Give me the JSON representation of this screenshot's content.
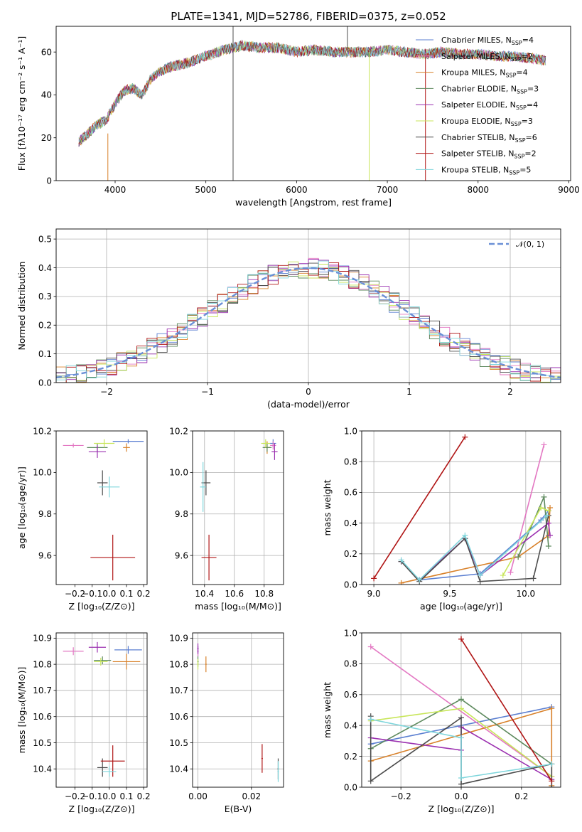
{
  "figure": {
    "title": "PLATE=1341, MJD=52786, FIBERID=0375, z=0.052"
  },
  "colors": {
    "Chabrier MILES": "#5b7fd1",
    "Salpeter MILES": "#e377c2",
    "Kroupa MILES": "#d8812a",
    "Chabrier ELODIE": "#5e8a5e",
    "Salpeter ELODIE": "#9b30b0",
    "Kroupa ELODIE": "#c8e65a",
    "Chabrier STELIB": "#4d4d4d",
    "Salpeter STELIB": "#b01515",
    "Kroupa STELIB": "#7fd6dc"
  },
  "chart_data": [
    {
      "id": "spectrum",
      "type": "line",
      "xlabel": "wavelength [Angstrom, rest frame]",
      "ylabel": "Flux [fλ10⁻¹⁷ erg cm⁻² s⁻¹ A⁻¹]",
      "xlim": [
        3350,
        9020
      ],
      "ylim": [
        0,
        72
      ],
      "xticks": [
        4000,
        5000,
        6000,
        7000,
        8000,
        9000
      ],
      "yticks": [
        0,
        20,
        40,
        60
      ],
      "grid": false,
      "legend_placement": "upper-right",
      "series": [
        {
          "name": "Chabrier MILES, N_SSP=4",
          "legend_prefix": "Chabrier MILES, N",
          "legend_sub": "SSP",
          "legend_suffix": "=4"
        },
        {
          "name": "Salpeter MILES, N_SSP=2",
          "legend_prefix": "Salpeter MILES, N",
          "legend_sub": "SSP",
          "legend_suffix": "=2"
        },
        {
          "name": "Kroupa MILES, N_SSP=4",
          "legend_prefix": "Kroupa MILES, N",
          "legend_sub": "SSP",
          "legend_suffix": "=4"
        },
        {
          "name": "Chabrier ELODIE, N_SSP=3",
          "legend_prefix": "Chabrier ELODIE, N",
          "legend_sub": "SSP",
          "legend_suffix": "=3"
        },
        {
          "name": "Salpeter ELODIE, N_SSP=4",
          "legend_prefix": "Salpeter ELODIE, N",
          "legend_sub": "SSP",
          "legend_suffix": "=4"
        },
        {
          "name": "Kroupa ELODIE, N_SSP=3",
          "legend_prefix": "Kroupa ELODIE, N",
          "legend_sub": "SSP",
          "legend_suffix": "=3"
        },
        {
          "name": "Chabrier STELIB, N_SSP=6",
          "legend_prefix": "Chabrier STELIB, N",
          "legend_sub": "SSP",
          "legend_suffix": "=6"
        },
        {
          "name": "Salpeter STELIB, N_SSP=2",
          "legend_prefix": "Salpeter STELIB, N",
          "legend_sub": "SSP",
          "legend_suffix": "=2"
        },
        {
          "name": "Kroupa STELIB, N_SSP=5",
          "legend_prefix": "Kroupa STELIB, N",
          "legend_sub": "SSP",
          "legend_suffix": "=5"
        }
      ],
      "continuum_points": [
        [
          3600,
          18
        ],
        [
          3800,
          26
        ],
        [
          3900,
          28
        ],
        [
          4000,
          36
        ],
        [
          4100,
          42
        ],
        [
          4200,
          43
        ],
        [
          4300,
          40
        ],
        [
          4400,
          48
        ],
        [
          4500,
          51
        ],
        [
          4600,
          53
        ],
        [
          4800,
          55
        ],
        [
          5000,
          58
        ],
        [
          5200,
          61
        ],
        [
          5400,
          63
        ],
        [
          5600,
          62
        ],
        [
          5800,
          62
        ],
        [
          6000,
          60
        ],
        [
          6200,
          61
        ],
        [
          6400,
          60
        ],
        [
          6600,
          60
        ],
        [
          6800,
          60
        ],
        [
          7000,
          61
        ],
        [
          7200,
          60
        ],
        [
          7400,
          59
        ],
        [
          7600,
          60
        ],
        [
          7800,
          59
        ],
        [
          8000,
          59
        ],
        [
          8200,
          58
        ],
        [
          8400,
          58
        ],
        [
          8600,
          57
        ],
        [
          8750,
          56
        ]
      ],
      "noise_amplitude": 2.5,
      "features": [
        {
          "series": "Chabrier STELIB",
          "x": 5300,
          "y_from": 0,
          "y_to": 72
        },
        {
          "series": "Chabrier STELIB",
          "x": 6560,
          "y_from": 60,
          "y_to": 72
        },
        {
          "series": "Kroupa ELODIE",
          "x": 6800,
          "y_from": 0,
          "y_to": 60
        },
        {
          "series": "Salpeter STELIB",
          "x": 7420,
          "y_from": 0,
          "y_to": 59
        },
        {
          "series": "Kroupa MILES",
          "x": 3920,
          "y_from": 0,
          "y_to": 22
        }
      ]
    },
    {
      "id": "residuals",
      "type": "bar",
      "xlabel": "(data-model)/error",
      "ylabel": "Normed distribution",
      "xlim": [
        -2.5,
        2.5
      ],
      "ylim": [
        0,
        0.535
      ],
      "xticks": [
        -2,
        -1,
        0,
        1,
        2
      ],
      "yticks": [
        0.0,
        0.1,
        0.2,
        0.3,
        0.4,
        0.5
      ],
      "grid": true,
      "legend_placement": "upper-right",
      "legend_entries": [
        "𝒩(0, 1)"
      ],
      "bin_edges": [
        -2.5,
        -2.4,
        -2.3,
        -2.2,
        -2.1,
        -2.0,
        -1.9,
        -1.8,
        -1.7,
        -1.6,
        -1.5,
        -1.4,
        -1.3,
        -1.2,
        -1.1,
        -1.0,
        -0.9,
        -0.8,
        -0.7,
        -0.6,
        -0.5,
        -0.4,
        -0.3,
        -0.2,
        -0.1,
        0.0,
        0.1,
        0.2,
        0.3,
        0.4,
        0.5,
        0.6,
        0.7,
        0.8,
        0.9,
        1.0,
        1.1,
        1.2,
        1.3,
        1.4,
        1.5,
        1.6,
        1.7,
        1.8,
        1.9,
        2.0,
        2.1,
        2.2,
        2.3,
        2.4,
        2.5
      ],
      "normal": {
        "mean": 0,
        "std": 1
      }
    },
    {
      "id": "age-vs-Z",
      "type": "scatter",
      "xlabel": "Z [log₁₀(Z/Z⊙)]",
      "ylabel": "age  [log₁₀(age/yr)]",
      "xlim": [
        -0.31,
        0.22
      ],
      "ylim": [
        9.46,
        10.2
      ],
      "xticks": [
        -0.2,
        -0.1,
        0.0,
        0.1,
        0.2
      ],
      "yticks": [
        9.6,
        9.8,
        10.0,
        10.2
      ],
      "grid": false,
      "points": [
        {
          "series": "Chabrier MILES",
          "x": 0.11,
          "y": 10.15,
          "xerr": 0.09,
          "yerr": 0.01
        },
        {
          "series": "Salpeter MILES",
          "x": -0.21,
          "y": 10.13,
          "xerr": 0.06,
          "yerr": 0.01
        },
        {
          "series": "Kroupa MILES",
          "x": 0.1,
          "y": 10.12,
          "xerr": 0.02,
          "yerr": 0.02
        },
        {
          "series": "Chabrier ELODIE",
          "x": -0.07,
          "y": 10.12,
          "xerr": 0.06,
          "yerr": 0.02
        },
        {
          "series": "Salpeter ELODIE",
          "x": -0.07,
          "y": 10.1,
          "xerr": 0.05,
          "yerr": 0.03
        },
        {
          "series": "Kroupa ELODIE",
          "x": -0.03,
          "y": 10.14,
          "xerr": 0.06,
          "yerr": 0.02
        },
        {
          "series": "Chabrier STELIB",
          "x": -0.04,
          "y": 9.95,
          "xerr": 0.03,
          "yerr": 0.06
        },
        {
          "series": "Salpeter STELIB",
          "x": 0.02,
          "y": 9.59,
          "xerr": 0.13,
          "yerr": 0.11
        },
        {
          "series": "Kroupa STELIB",
          "x": 0.0,
          "y": 9.93,
          "xerr": 0.06,
          "yerr": 0.05
        }
      ]
    },
    {
      "id": "age-vs-mass",
      "type": "scatter",
      "xlabel": "mass [log₁₀(M/M⊙)]",
      "ylabel": "",
      "xlim": [
        10.32,
        10.93
      ],
      "ylim": [
        9.46,
        10.2
      ],
      "xticks": [
        10.4,
        10.6,
        10.8
      ],
      "yticks": [
        9.6,
        9.8,
        10.0,
        10.2
      ],
      "grid": true,
      "points": [
        {
          "series": "Chabrier MILES",
          "x": 10.86,
          "y": 10.14,
          "xerr": 0.02,
          "yerr": 0.02
        },
        {
          "series": "Salpeter MILES",
          "x": 10.86,
          "y": 10.13,
          "xerr": 0.02,
          "yerr": 0.02
        },
        {
          "series": "Kroupa MILES",
          "x": 10.82,
          "y": 10.12,
          "xerr": 0.02,
          "yerr": 0.03
        },
        {
          "series": "Chabrier ELODIE",
          "x": 10.82,
          "y": 10.12,
          "xerr": 0.03,
          "yerr": 0.02
        },
        {
          "series": "Salpeter ELODIE",
          "x": 10.87,
          "y": 10.1,
          "xerr": 0.02,
          "yerr": 0.04
        },
        {
          "series": "Kroupa ELODIE",
          "x": 10.81,
          "y": 10.14,
          "xerr": 0.03,
          "yerr": 0.02
        },
        {
          "series": "Chabrier STELIB",
          "x": 10.41,
          "y": 9.95,
          "xerr": 0.03,
          "yerr": 0.06
        },
        {
          "series": "Salpeter STELIB",
          "x": 10.43,
          "y": 9.59,
          "xerr": 0.05,
          "yerr": 0.11
        },
        {
          "series": "Kroupa STELIB",
          "x": 10.39,
          "y": 9.93,
          "xerr": 0.02,
          "yerr": 0.12
        }
      ]
    },
    {
      "id": "weight-vs-age",
      "type": "line",
      "xlabel": "age  [log₁₀(age/yr)]",
      "ylabel": "mass weight",
      "xlim": [
        8.92,
        10.23
      ],
      "ylim": [
        0,
        1.0
      ],
      "xticks": [
        9.0,
        9.5,
        10.0
      ],
      "yticks": [
        0.0,
        0.2,
        0.4,
        0.6,
        0.8,
        1.0
      ],
      "grid": true,
      "series": [
        {
          "name": "Chabrier MILES",
          "x": [
            9.3,
            9.7,
            10.1,
            10.15
          ],
          "y": [
            0.03,
            0.07,
            0.42,
            0.48
          ]
        },
        {
          "name": "Salpeter MILES",
          "x": [
            9.9,
            10.12
          ],
          "y": [
            0.08,
            0.91
          ]
        },
        {
          "name": "Kroupa MILES",
          "x": [
            9.18,
            9.95,
            10.15,
            10.16
          ],
          "y": [
            0.01,
            0.18,
            0.32,
            0.5
          ]
        },
        {
          "name": "Chabrier ELODIE",
          "x": [
            9.95,
            10.12,
            10.15
          ],
          "y": [
            0.18,
            0.57,
            0.25
          ]
        },
        {
          "name": "Salpeter ELODIE",
          "x": [
            9.18,
            9.3,
            9.6,
            9.7,
            10.15,
            10.16
          ],
          "y": [
            0.15,
            0.03,
            0.3,
            0.06,
            0.4,
            0.32
          ]
        },
        {
          "name": "Kroupa ELODIE",
          "x": [
            9.85,
            10.1,
            10.15
          ],
          "y": [
            0.06,
            0.5,
            0.48
          ]
        },
        {
          "name": "Chabrier STELIB",
          "x": [
            9.18,
            9.3,
            9.6,
            9.7,
            10.05,
            10.15
          ],
          "y": [
            0.15,
            0.02,
            0.3,
            0.02,
            0.04,
            0.45
          ]
        },
        {
          "name": "Salpeter STELIB",
          "x": [
            9.0,
            9.6
          ],
          "y": [
            0.04,
            0.96
          ]
        },
        {
          "name": "Kroupa STELIB",
          "x": [
            9.18,
            9.3,
            9.6,
            9.7,
            10.14
          ],
          "y": [
            0.16,
            0.03,
            0.32,
            0.06,
            0.45
          ]
        }
      ]
    },
    {
      "id": "mass-vs-Z",
      "type": "scatter",
      "xlabel": "Z [log₁₀(Z/Z⊙)]",
      "ylabel": "mass [log₁₀(M/M⊙)]",
      "xlim": [
        -0.31,
        0.22
      ],
      "ylim": [
        10.33,
        10.92
      ],
      "xticks": [
        -0.2,
        -0.1,
        0.0,
        0.1,
        0.2
      ],
      "yticks": [
        10.4,
        10.5,
        10.6,
        10.7,
        10.8,
        10.9
      ],
      "grid": true,
      "points": [
        {
          "series": "Chabrier MILES",
          "x": 0.11,
          "y": 10.855,
          "xerr": 0.08,
          "yerr": 0.015
        },
        {
          "series": "Salpeter MILES",
          "x": -0.21,
          "y": 10.85,
          "xerr": 0.06,
          "yerr": 0.015
        },
        {
          "series": "Kroupa MILES",
          "x": 0.1,
          "y": 10.81,
          "xerr": 0.08,
          "yerr": 0.03
        },
        {
          "series": "Chabrier ELODIE",
          "x": -0.04,
          "y": 10.815,
          "xerr": 0.05,
          "yerr": 0.015
        },
        {
          "series": "Salpeter ELODIE",
          "x": -0.07,
          "y": 10.865,
          "xerr": 0.05,
          "yerr": 0.02
        },
        {
          "series": "Kroupa ELODIE",
          "x": -0.05,
          "y": 10.81,
          "xerr": 0.04,
          "yerr": 0.015
        },
        {
          "series": "Chabrier STELIB",
          "x": -0.04,
          "y": 10.405,
          "xerr": 0.03,
          "yerr": 0.035
        },
        {
          "series": "Salpeter STELIB",
          "x": 0.02,
          "y": 10.43,
          "xerr": 0.07,
          "yerr": 0.06
        },
        {
          "series": "Kroupa STELIB",
          "x": 0.0,
          "y": 10.39,
          "xerr": 0.04,
          "yerr": 0.02
        }
      ]
    },
    {
      "id": "mass-vs-EBV",
      "type": "scatter",
      "xlabel": "E(B-V)",
      "ylabel": "",
      "xlim": [
        -0.002,
        0.032
      ],
      "ylim": [
        10.33,
        10.92
      ],
      "xticks": [
        0.0,
        0.02
      ],
      "xticklabels": [
        "0.00",
        "0.02"
      ],
      "yticks": [
        10.4,
        10.5,
        10.6,
        10.7,
        10.8,
        10.9
      ],
      "grid": true,
      "points": [
        {
          "series": "Chabrier MILES",
          "x": 0.0,
          "y": 10.85,
          "xerr": 0,
          "yerr": 0.02
        },
        {
          "series": "Salpeter MILES",
          "x": 0.0,
          "y": 10.85,
          "xerr": 0,
          "yerr": 0.02
        },
        {
          "series": "Kroupa MILES",
          "x": 0.003,
          "y": 10.8,
          "xerr": 0,
          "yerr": 0.03
        },
        {
          "series": "Chabrier ELODIE",
          "x": 0.0,
          "y": 10.81,
          "xerr": 0,
          "yerr": 0.02
        },
        {
          "series": "Salpeter ELODIE",
          "x": 0.0,
          "y": 10.86,
          "xerr": 0,
          "yerr": 0.02
        },
        {
          "series": "Kroupa ELODIE",
          "x": 0.0,
          "y": 10.8,
          "xerr": 0,
          "yerr": 0.02
        },
        {
          "series": "Chabrier STELIB",
          "x": 0.03,
          "y": 10.4,
          "xerr": 0,
          "yerr": 0.04
        },
        {
          "series": "Salpeter STELIB",
          "x": 0.024,
          "y": 10.44,
          "xerr": 0,
          "yerr": 0.055
        },
        {
          "series": "Kroupa STELIB",
          "x": 0.03,
          "y": 10.39,
          "xerr": 0,
          "yerr": 0.04
        }
      ]
    },
    {
      "id": "weight-vs-Z",
      "type": "line",
      "xlabel": "Z [log₁₀(Z/Z⊙)]",
      "ylabel": "mass weight",
      "xlim": [
        -0.33,
        0.33
      ],
      "ylim": [
        0,
        1.0
      ],
      "xticks": [
        -0.2,
        0.0,
        0.2
      ],
      "yticks": [
        0.0,
        0.2,
        0.4,
        0.6,
        0.8,
        1.0
      ],
      "grid": true,
      "series": [
        {
          "name": "Chabrier MILES",
          "x": [
            -0.3,
            0.3
          ],
          "y": [
            0.28,
            0.52
          ]
        },
        {
          "name": "Salpeter MILES",
          "x": [
            -0.3,
            0.3
          ],
          "y": [
            0.91,
            0.07
          ]
        },
        {
          "name": "Kroupa MILES",
          "x": [
            -0.3,
            0.3,
            0.3
          ],
          "y": [
            0.17,
            0.51,
            0.01
          ]
        },
        {
          "name": "Chabrier ELODIE",
          "x": [
            -0.3,
            0.0,
            0.3
          ],
          "y": [
            0.25,
            0.57,
            0.15
          ]
        },
        {
          "name": "Salpeter ELODIE",
          "x": [
            -0.3,
            0.0,
            0.0,
            0.3
          ],
          "y": [
            0.32,
            0.24,
            0.39,
            0.05
          ]
        },
        {
          "name": "Kroupa ELODIE",
          "x": [
            -0.3,
            0.0,
            0.3
          ],
          "y": [
            0.43,
            0.51,
            0.07
          ]
        },
        {
          "name": "Chabrier STELIB",
          "x": [
            -0.3,
            -0.3,
            0.0,
            0.0,
            0.3,
            0.3
          ],
          "y": [
            0.46,
            0.04,
            0.45,
            0.02,
            0.15,
            0.0
          ]
        },
        {
          "name": "Salpeter STELIB",
          "x": [
            0.0,
            0.0,
            0.3
          ],
          "y": [
            0.96,
            0.96,
            0.04
          ]
        },
        {
          "name": "Kroupa STELIB",
          "x": [
            -0.3,
            0.0,
            0.0,
            0.3
          ],
          "y": [
            0.44,
            0.32,
            0.06,
            0.15
          ]
        }
      ]
    }
  ]
}
